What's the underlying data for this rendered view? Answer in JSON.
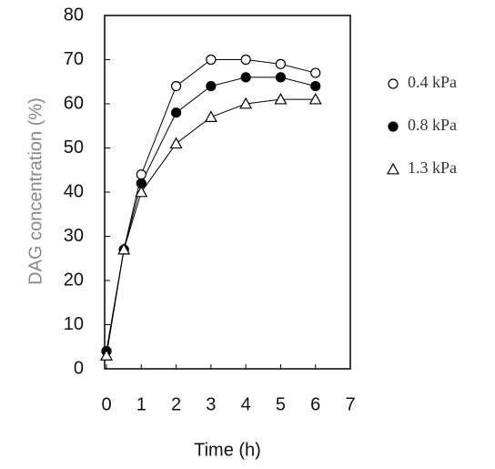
{
  "chart_data": {
    "type": "line",
    "x_label": "Time (h)",
    "y_label": "DAG concentration (%)",
    "x": [
      0,
      0.5,
      1,
      2,
      3,
      4,
      5,
      6
    ],
    "series": [
      {
        "name": "0.4 kPa",
        "color": "#000000",
        "marker": "circle-open",
        "values": [
          4,
          27,
          44,
          64,
          70,
          70,
          69,
          67
        ]
      },
      {
        "name": "0.8 kPa",
        "color": "#000000",
        "marker": "circle-filled",
        "values": [
          4,
          27,
          42,
          58,
          64,
          66,
          66,
          64
        ]
      },
      {
        "name": "1.3 kPa",
        "color": "#000000",
        "marker": "triangle-open",
        "values": [
          3,
          27,
          40,
          51,
          57,
          60,
          61,
          61
        ]
      }
    ],
    "xlim": [
      0,
      7
    ],
    "xticks": [
      0,
      1,
      2,
      3,
      4,
      5,
      6,
      7
    ],
    "ylim": [
      0,
      80
    ],
    "yticks": [
      0,
      10,
      20,
      30,
      40,
      50,
      60,
      70,
      80
    ],
    "grid": false
  }
}
